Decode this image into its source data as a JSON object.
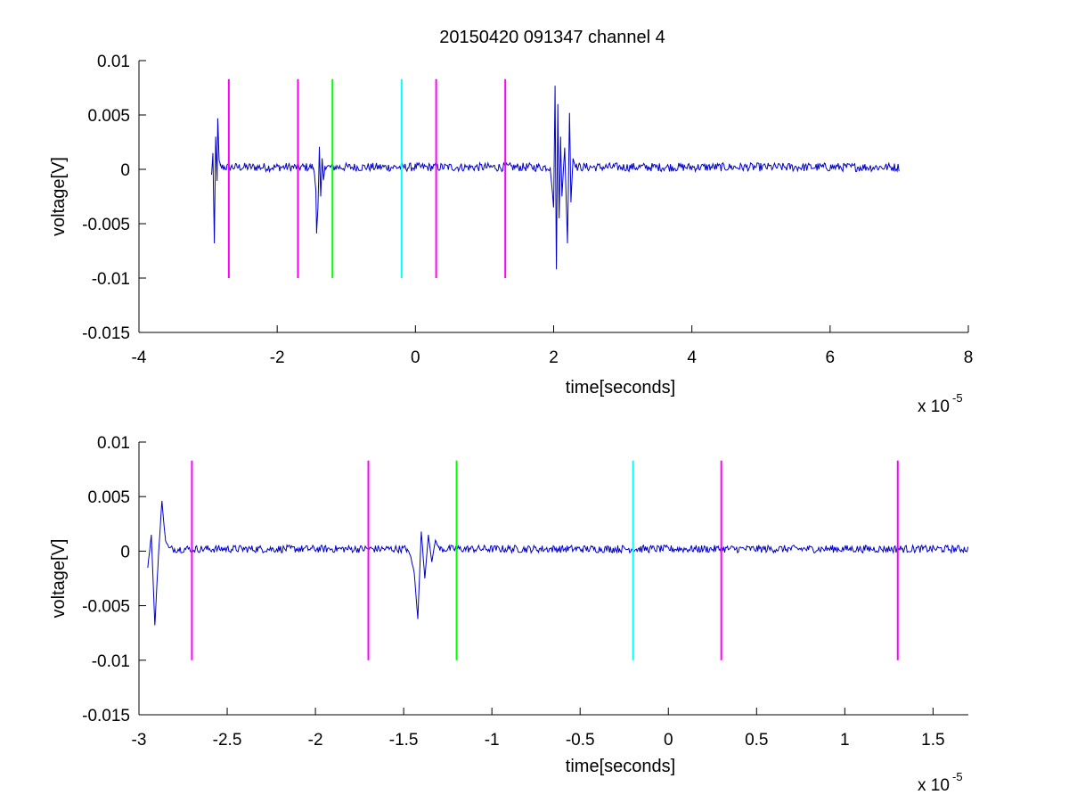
{
  "figure": {
    "title": "20150420 091347 channel 4"
  },
  "colors": {
    "signal": "#0000c8",
    "magenta": "#ff00ff",
    "green": "#00ff00",
    "cyan": "#00ffff",
    "axis": "#000000"
  },
  "chart_data": [
    {
      "type": "line",
      "title": "20150420 091347 channel 4",
      "xlabel": "time[seconds]",
      "ylabel": "voltage[V]",
      "x_multiplier": "x 10",
      "x_multiplier_exponent": "-5",
      "xlim": [
        -4,
        8
      ],
      "ylim": [
        -0.015,
        0.01
      ],
      "xticks": [
        -4,
        -2,
        0,
        2,
        4,
        6,
        8
      ],
      "xtick_labels": [
        "-4",
        "-2",
        "0",
        "2",
        "4",
        "6",
        "8"
      ],
      "yticks": [
        0.01,
        0.005,
        0,
        -0.005,
        -0.01,
        -0.015
      ],
      "ytick_labels": [
        "0.01",
        "0.005",
        "0",
        "-0.005",
        "-0.01",
        "-0.015"
      ],
      "grid": false,
      "signal": {
        "color": "signal",
        "x_range": [
          -2.95,
          7.0
        ],
        "bursts": [
          {
            "points": [
              [
                -2.95,
                -0.0005
              ],
              [
                -2.93,
                0.0015
              ],
              [
                -2.91,
                -0.0068
              ],
              [
                -2.89,
                0.003
              ],
              [
                -2.87,
                -0.001
              ],
              [
                -2.86,
                0.0047
              ],
              [
                -2.84,
                0.0008
              ],
              [
                -2.82,
                0.0003
              ]
            ]
          },
          {
            "points": [
              [
                -1.48,
                0.0002
              ],
              [
                -1.46,
                -0.0005
              ],
              [
                -1.44,
                -0.002
              ],
              [
                -1.43,
                -0.0058
              ],
              [
                -1.41,
                -0.0035
              ],
              [
                -1.39,
                0.002
              ],
              [
                -1.37,
                -0.0025
              ],
              [
                -1.35,
                0.001
              ],
              [
                -1.33,
                -0.001
              ],
              [
                -1.31,
                0.0003
              ]
            ]
          },
          {
            "points": [
              [
                1.95,
                0.0002
              ],
              [
                2.0,
                -0.0035
              ],
              [
                2.02,
                0.0077
              ],
              [
                2.04,
                -0.0092
              ],
              [
                2.06,
                0.006
              ],
              [
                2.08,
                -0.0045
              ],
              [
                2.1,
                0.003
              ],
              [
                2.12,
                -0.0025
              ],
              [
                2.16,
                0.002
              ],
              [
                2.2,
                -0.0068
              ],
              [
                2.23,
                0.0052
              ],
              [
                2.25,
                -0.003
              ],
              [
                2.28,
                0.001
              ],
              [
                2.32,
                0.0002
              ]
            ]
          }
        ],
        "baseline": 0.0002,
        "noise": 0.0004
      },
      "markers": [
        {
          "x": -2.7,
          "color": "magenta",
          "y": [
            -0.01,
            0.0083
          ]
        },
        {
          "x": -1.7,
          "color": "magenta",
          "y": [
            -0.01,
            0.0083
          ]
        },
        {
          "x": -1.2,
          "color": "green",
          "y": [
            -0.01,
            0.0083
          ]
        },
        {
          "x": -0.2,
          "color": "cyan",
          "y": [
            -0.01,
            0.0083
          ]
        },
        {
          "x": 0.3,
          "color": "magenta",
          "y": [
            -0.01,
            0.0083
          ]
        },
        {
          "x": 1.3,
          "color": "magenta",
          "y": [
            -0.01,
            0.0083
          ]
        }
      ]
    },
    {
      "type": "line",
      "xlabel": "time[seconds]",
      "ylabel": "voltage[V]",
      "x_multiplier": "x 10",
      "x_multiplier_exponent": "-5",
      "xlim": [
        -3.0,
        1.7
      ],
      "ylim": [
        -0.015,
        0.01
      ],
      "xticks": [
        -3,
        -2.5,
        -2,
        -1.5,
        -1,
        -0.5,
        0,
        0.5,
        1,
        1.5
      ],
      "xtick_labels": [
        "-3",
        "-2.5",
        "-2",
        "-1.5",
        "-1",
        "-0.5",
        "0",
        "0.5",
        "1",
        "1.5"
      ],
      "yticks": [
        0.01,
        0.005,
        0,
        -0.005,
        -0.01,
        -0.015
      ],
      "ytick_labels": [
        "0.01",
        "0.005",
        "0",
        "-0.005",
        "-0.01",
        "-0.015"
      ],
      "grid": false,
      "signal": {
        "color": "signal",
        "x_range": [
          -2.95,
          1.7
        ],
        "bursts": [
          {
            "points": [
              [
                -2.95,
                -0.0015
              ],
              [
                -2.93,
                0.0015
              ],
              [
                -2.91,
                -0.0068
              ],
              [
                -2.89,
                -0.0005
              ],
              [
                -2.87,
                0.0046
              ],
              [
                -2.85,
                0.001
              ],
              [
                -2.83,
                0.0003
              ]
            ]
          },
          {
            "points": [
              [
                -1.48,
                0.0002
              ],
              [
                -1.46,
                -0.0005
              ],
              [
                -1.44,
                -0.002
              ],
              [
                -1.42,
                -0.0062
              ],
              [
                -1.4,
                0.0018
              ],
              [
                -1.38,
                -0.0025
              ],
              [
                -1.36,
                0.0015
              ],
              [
                -1.34,
                -0.001
              ],
              [
                -1.32,
                0.001
              ],
              [
                -1.3,
                0.0003
              ]
            ]
          }
        ],
        "baseline": 0.0002,
        "noise": 0.00035
      },
      "markers": [
        {
          "x": -2.7,
          "color": "magenta",
          "y": [
            -0.01,
            0.0083
          ]
        },
        {
          "x": -1.7,
          "color": "magenta",
          "y": [
            -0.01,
            0.0083
          ]
        },
        {
          "x": -1.2,
          "color": "green",
          "y": [
            -0.01,
            0.0083
          ]
        },
        {
          "x": -0.2,
          "color": "cyan",
          "y": [
            -0.01,
            0.0083
          ]
        },
        {
          "x": 0.3,
          "color": "magenta",
          "y": [
            -0.01,
            0.0083
          ]
        },
        {
          "x": 1.3,
          "color": "magenta",
          "y": [
            -0.01,
            0.0083
          ]
        }
      ]
    }
  ]
}
